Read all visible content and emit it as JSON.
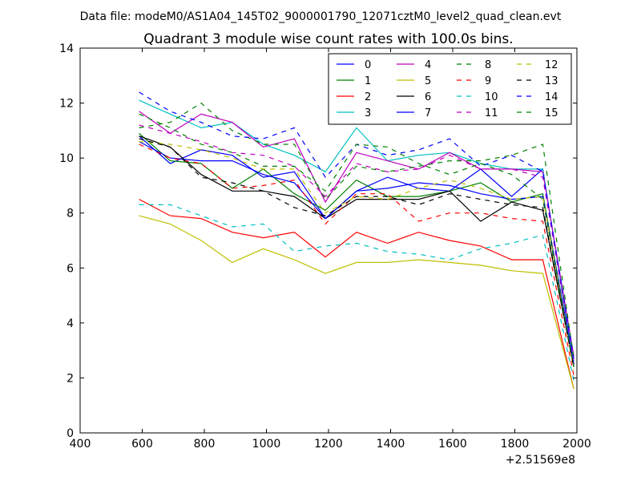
{
  "header": {
    "datafile": "Data file: modeM0/AS1A04_145T02_9000001790_12071cztM0_level2_quad_clean.evt"
  },
  "chart_data": {
    "type": "line",
    "title": "Quadrant 3 module wise count rates with 100.0s bins.",
    "xlabel": "",
    "ylabel": "",
    "xlim": [
      400,
      2000
    ],
    "ylim": [
      0,
      14
    ],
    "x_offset_label": "+2.51569e8",
    "x_ticks": [
      400,
      600,
      800,
      1000,
      1200,
      1400,
      1600,
      1800,
      2000
    ],
    "y_ticks": [
      0,
      2,
      4,
      6,
      8,
      10,
      12,
      14
    ],
    "grid": false,
    "legend_position": "top-right",
    "x": [
      590,
      690,
      790,
      890,
      990,
      1090,
      1190,
      1290,
      1390,
      1490,
      1590,
      1690,
      1790,
      1890,
      1990
    ],
    "series": [
      {
        "name": "0",
        "color": "#0000ff",
        "dash": "solid",
        "values": [
          10.8,
          9.8,
          10.3,
          10.1,
          9.3,
          9.5,
          7.8,
          8.8,
          9.3,
          8.9,
          8.8,
          9.6,
          8.6,
          9.6,
          2.5
        ]
      },
      {
        "name": "1",
        "color": "#008000",
        "dash": "solid",
        "values": [
          10.9,
          9.9,
          9.8,
          8.9,
          9.6,
          8.7,
          8.1,
          9.2,
          8.6,
          8.6,
          8.8,
          9.1,
          8.4,
          8.7,
          2.5
        ]
      },
      {
        "name": "2",
        "color": "#ff0000",
        "dash": "solid",
        "values": [
          8.5,
          7.9,
          7.8,
          7.3,
          7.1,
          7.3,
          6.4,
          7.3,
          6.9,
          7.3,
          7.0,
          6.8,
          6.3,
          6.3,
          1.6
        ]
      },
      {
        "name": "3",
        "color": "#00bfbf",
        "dash": "solid",
        "values": [
          12.1,
          11.6,
          11.1,
          11.3,
          10.5,
          10.1,
          9.5,
          11.1,
          9.9,
          10.1,
          10.2,
          9.8,
          9.6,
          9.6,
          2.6
        ]
      },
      {
        "name": "4",
        "color": "#bf00bf",
        "dash": "solid",
        "values": [
          11.7,
          10.9,
          11.6,
          11.3,
          10.4,
          10.7,
          8.4,
          10.2,
          9.9,
          9.6,
          10.2,
          9.6,
          9.6,
          9.5,
          2.8
        ]
      },
      {
        "name": "5",
        "color": "#bfbf00",
        "dash": "solid",
        "values": [
          7.9,
          7.6,
          7.0,
          6.2,
          6.7,
          6.3,
          5.8,
          6.2,
          6.2,
          6.3,
          6.2,
          6.1,
          5.9,
          5.8,
          1.6
        ]
      },
      {
        "name": "6",
        "color": "#000000",
        "dash": "solid",
        "values": [
          10.8,
          10.4,
          9.4,
          8.8,
          8.8,
          8.6,
          7.8,
          8.5,
          8.5,
          8.5,
          8.8,
          7.7,
          8.4,
          8.1,
          2.4
        ]
      },
      {
        "name": "7",
        "color": "#0000ff",
        "dash": "solid",
        "values": [
          10.6,
          10.0,
          9.9,
          9.9,
          9.4,
          9.1,
          7.8,
          8.8,
          8.9,
          9.1,
          9.0,
          8.7,
          8.5,
          8.6,
          2.5
        ]
      },
      {
        "name": "8",
        "color": "#008000",
        "dash": "dashed",
        "values": [
          11.1,
          11.3,
          12.0,
          11.0,
          10.5,
          10.5,
          8.5,
          9.7,
          9.5,
          9.7,
          9.9,
          9.9,
          10.1,
          10.5,
          2.7
        ]
      },
      {
        "name": "9",
        "color": "#ff0000",
        "dash": "dashed",
        "values": [
          10.5,
          10.0,
          9.8,
          8.9,
          9.0,
          9.2,
          7.6,
          8.7,
          8.7,
          7.7,
          8.0,
          8.0,
          7.8,
          7.7,
          2.1
        ]
      },
      {
        "name": "10",
        "color": "#00bfbf",
        "dash": "dashed",
        "values": [
          8.3,
          8.3,
          7.9,
          7.5,
          7.6,
          6.6,
          6.8,
          6.9,
          6.6,
          6.5,
          6.3,
          6.7,
          6.9,
          7.2,
          1.9
        ]
      },
      {
        "name": "11",
        "color": "#bf00bf",
        "dash": "dashed",
        "values": [
          11.2,
          10.9,
          10.6,
          10.2,
          10.1,
          9.7,
          8.6,
          9.8,
          9.5,
          9.6,
          10.1,
          9.6,
          9.6,
          9.3,
          2.6
        ]
      },
      {
        "name": "12",
        "color": "#bfbf00",
        "dash": "dashed",
        "values": [
          10.6,
          10.5,
          10.3,
          10.0,
          9.6,
          9.6,
          8.0,
          8.6,
          8.5,
          8.9,
          9.2,
          8.9,
          8.5,
          8.6,
          2.3
        ]
      },
      {
        "name": "13",
        "color": "#000000",
        "dash": "dashed",
        "values": [
          10.7,
          10.4,
          9.3,
          9.1,
          8.8,
          8.2,
          7.9,
          8.6,
          8.6,
          8.3,
          8.7,
          8.5,
          8.3,
          8.2,
          2.4
        ]
      },
      {
        "name": "14",
        "color": "#0000ff",
        "dash": "dashed",
        "values": [
          12.4,
          11.7,
          11.3,
          10.8,
          10.7,
          11.1,
          9.3,
          10.5,
          10.1,
          10.3,
          10.7,
          9.7,
          10.1,
          9.5,
          2.7
        ]
      },
      {
        "name": "15",
        "color": "#008000",
        "dash": "dashed",
        "values": [
          11.6,
          11.1,
          10.5,
          10.2,
          9.7,
          9.7,
          8.8,
          10.5,
          10.4,
          9.8,
          9.4,
          9.8,
          9.4,
          8.5,
          2.4
        ]
      }
    ]
  }
}
